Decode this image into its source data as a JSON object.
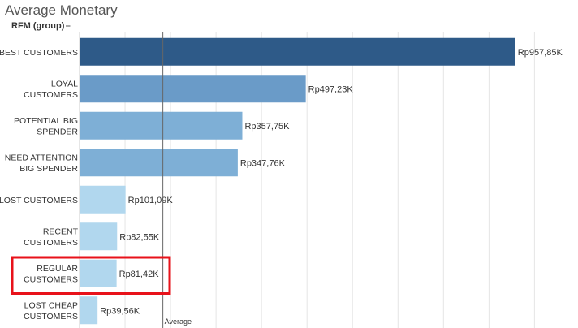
{
  "title": "Average Monetary",
  "dimension_header": "RFM (group)",
  "reference_line": {
    "label": "Average",
    "value": 183.15
  },
  "highlight": {
    "category": "REGULAR CUSTOMERS",
    "color": "#e8121a"
  },
  "colors": {
    "dark": "#2e5a88",
    "mid": "#6a9bc8",
    "light_mid": "#7eafd6",
    "light": "#b1d7ee",
    "grid": "#e5e5e5",
    "ref_line": "#666666"
  },
  "chart_data": {
    "type": "bar",
    "orientation": "horizontal",
    "title": "Average Monetary",
    "ylabel": "RFM (group)",
    "xlim": [
      0,
      1000
    ],
    "grid": true,
    "categories": [
      "BEST CUSTOMERS",
      "LOYAL CUSTOMERS",
      "POTENTIAL BIG SPENDER",
      "NEED ATTENTION BIG SPENDER",
      "LOST CUSTOMERS",
      "RECENT CUSTOMERS",
      "REGULAR CUSTOMERS",
      "LOST CHEAP CUSTOMERS"
    ],
    "category_lines": [
      [
        "BEST CUSTOMERS"
      ],
      [
        "LOYAL",
        "CUSTOMERS"
      ],
      [
        "POTENTIAL BIG",
        "SPENDER"
      ],
      [
        "NEED ATTENTION",
        "BIG SPENDER"
      ],
      [
        "LOST CUSTOMERS"
      ],
      [
        "RECENT",
        "CUSTOMERS"
      ],
      [
        "REGULAR",
        "CUSTOMERS"
      ],
      [
        "LOST CHEAP",
        "CUSTOMERS"
      ]
    ],
    "values": [
      957.85,
      497.23,
      357.75,
      347.76,
      101.09,
      82.55,
      81.42,
      39.56
    ],
    "value_labels": [
      "Rp957,85K",
      "Rp497,23K",
      "Rp357,75K",
      "Rp347,76K",
      "Rp101,09K",
      "Rp82,55K",
      "Rp81,42K",
      "Rp39,56K"
    ],
    "bar_colors": [
      "#2e5a88",
      "#6a9bc8",
      "#7eafd6",
      "#7eafd6",
      "#b1d7ee",
      "#b1d7ee",
      "#b1d7ee",
      "#b1d7ee"
    ]
  }
}
